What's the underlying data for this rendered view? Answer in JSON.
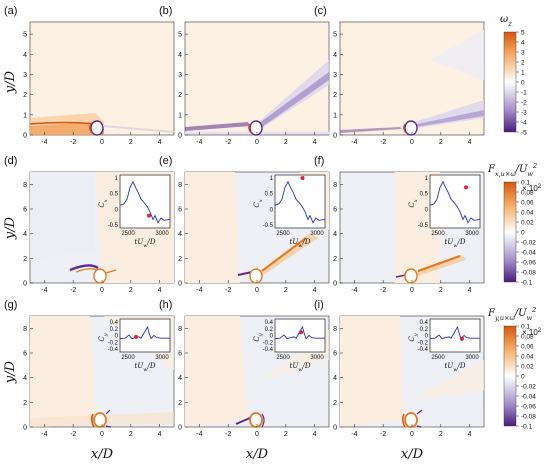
{
  "panel_labels": [
    "(a)",
    "(b)",
    "(c)",
    "(d)",
    "(e)",
    "(f)",
    "(g)",
    "(h)",
    "(i)"
  ],
  "x_ticks": [
    "-4",
    "-2",
    "0",
    "2",
    "4"
  ],
  "y_ticks_row1": [
    "0",
    "1",
    "2",
    "3",
    "4",
    "5"
  ],
  "y_ticks_rows23": [
    "0",
    "2",
    "4",
    "6",
    "8"
  ],
  "ylabel": "y/D",
  "xlabel": "x/D",
  "colorbar_top": {
    "title": "ω",
    "title_sub": "z",
    "ticks": [
      "5",
      "4",
      "3",
      "2",
      "1",
      "0",
      "-1",
      "-2",
      "-3",
      "-4",
      "-5"
    ]
  },
  "colorbar_mid": {
    "title": "F",
    "title_sub": "x,u×ω",
    "title_tail": "/U",
    "title_tail_sub": "w",
    "title_tail_sup": "2",
    "multiplier": "× 10",
    "multiplier_sup": "2",
    "ticks": [
      "0.1",
      "0.08",
      "0.06",
      "0.04",
      "0.02",
      "0",
      "-0.02",
      "-0.04",
      "-0.06",
      "-0.08",
      "-0.1"
    ]
  },
  "colorbar_bot": {
    "title": "F",
    "title_sub": "y,u×ω",
    "title_tail": "/U",
    "title_tail_sub": "w",
    "title_tail_sup": "2",
    "multiplier": "× 10",
    "multiplier_sup": "2",
    "ticks": [
      "0.1",
      "0.08",
      "0.06",
      "0.04",
      "0.02",
      "0",
      "-0.02",
      "-0.04",
      "-0.06",
      "-0.08",
      "-0.1"
    ]
  },
  "inset_cx": {
    "ylabel": "C",
    "ylabel_sub": "x",
    "xlabel": "tU",
    "xlabel_sub": "w",
    "xlabel_tail": "/D",
    "y_ticks": [
      "1",
      "0.5",
      "0",
      "-0.5"
    ],
    "x_ticks": [
      "2500",
      "3000"
    ]
  },
  "inset_cy": {
    "ylabel": "C",
    "ylabel_sub": "y",
    "xlabel": "tU",
    "xlabel_sub": "w",
    "xlabel_tail": "/D",
    "y_ticks": [
      "0.4",
      "0.2",
      "0",
      "-0.2",
      "-0.4"
    ],
    "x_ticks": [
      "2500",
      "3000"
    ]
  },
  "colors": {
    "positive": "#e8761a",
    "negative": "#5b2a8c",
    "background_warm": "#fdf1e4",
    "background_cool": "#eef0f6",
    "trace": "#1a2fd8",
    "marker": "#e8202a"
  }
}
